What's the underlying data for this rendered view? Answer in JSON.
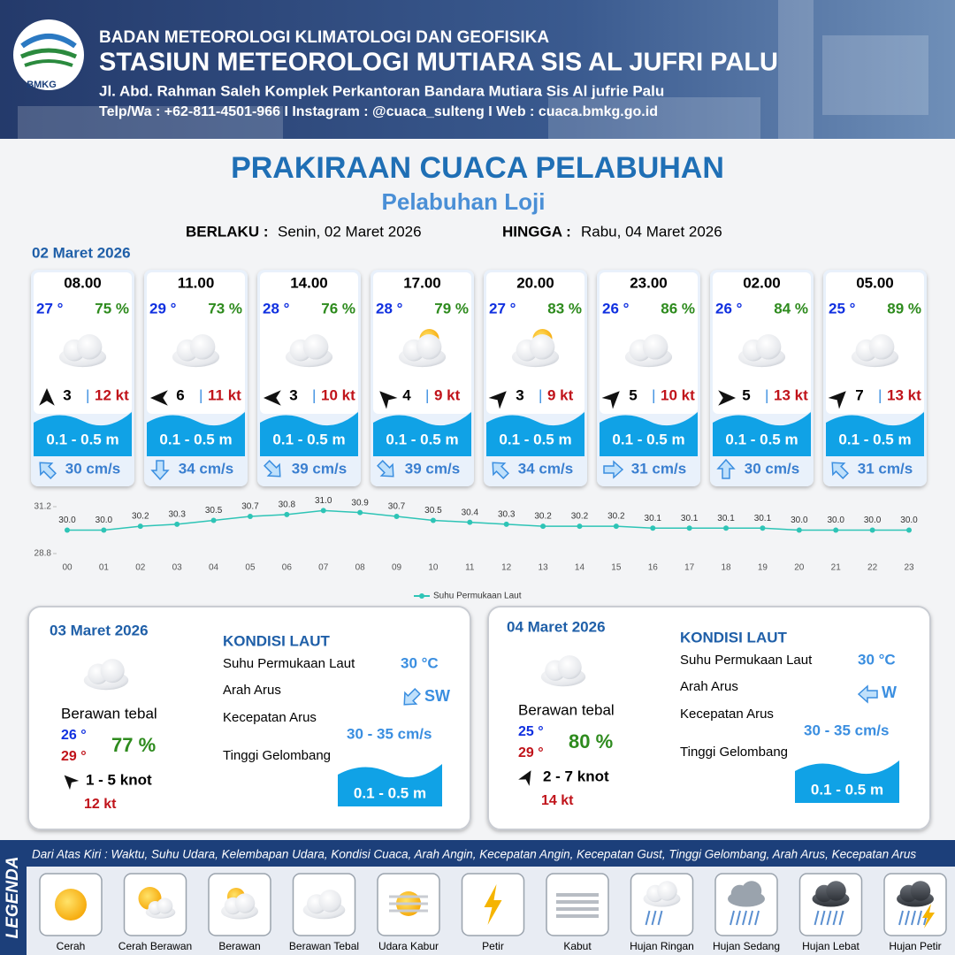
{
  "header": {
    "org": "BADAN METEOROLOGI KLIMATOLOGI DAN GEOFISIKA",
    "station": "STASIUN METEOROLOGI MUTIARA SIS AL JUFRI PALU",
    "address": "Jl. Abd. Rahman Saleh Komplek Perkantoran Bandara Mutiara Sis Al jufrie Palu",
    "contact": "Telp/Wa : +62-811-4501-966  I  Instagram : @cuaca_sulteng  I  Web : cuaca.bmkg.go.id",
    "logo": "BMKG"
  },
  "title": "PRAKIRAAN CUACA PELABUHAN",
  "subtitle": "Pelabuhan Loji",
  "validity": {
    "from_label": "BERLAKU :",
    "from": "Senin, 02 Maret 2026",
    "to_label": "HINGGA :",
    "to": "Rabu, 04 Maret 2026"
  },
  "day1": {
    "date": "02 Maret 2026",
    "cards": [
      {
        "time": "08.00",
        "temp": "27 °",
        "humidity": "75 %",
        "wind": "3",
        "gust": "12 kt",
        "wave": "0.1 - 0.5 m",
        "current": "30 cm/s"
      },
      {
        "time": "11.00",
        "temp": "29 °",
        "humidity": "73 %",
        "wind": "6",
        "gust": "11 kt",
        "wave": "0.1 - 0.5 m",
        "current": "34 cm/s"
      },
      {
        "time": "14.00",
        "temp": "28 °",
        "humidity": "76 %",
        "wind": "3",
        "gust": "10 kt",
        "wave": "0.1 - 0.5 m",
        "current": "39 cm/s"
      },
      {
        "time": "17.00",
        "temp": "28 °",
        "humidity": "79 %",
        "wind": "4",
        "gust": "9 kt",
        "wave": "0.1 - 0.5 m",
        "current": "39 cm/s"
      },
      {
        "time": "20.00",
        "temp": "27 °",
        "humidity": "83 %",
        "wind": "3",
        "gust": "9 kt",
        "wave": "0.1 - 0.5 m",
        "current": "34 cm/s"
      },
      {
        "time": "23.00",
        "temp": "26 °",
        "humidity": "86 %",
        "wind": "5",
        "gust": "10 kt",
        "wave": "0.1 - 0.5 m",
        "current": "31 cm/s"
      },
      {
        "time": "02.00",
        "temp": "26 °",
        "humidity": "84 %",
        "wind": "5",
        "gust": "13 kt",
        "wave": "0.1 - 0.5 m",
        "current": "30 cm/s"
      },
      {
        "time": "05.00",
        "temp": "25 °",
        "humidity": "89 %",
        "wind": "7",
        "gust": "13 kt",
        "wave": "0.1 - 0.5 m",
        "current": "31 cm/s"
      }
    ]
  },
  "chart_data": {
    "type": "line",
    "x": [
      "00",
      "01",
      "02",
      "03",
      "04",
      "05",
      "06",
      "07",
      "08",
      "09",
      "10",
      "11",
      "12",
      "13",
      "14",
      "15",
      "16",
      "17",
      "18",
      "19",
      "20",
      "21",
      "22",
      "23"
    ],
    "series": [
      {
        "name": "Suhu Permukaan Laut",
        "color": "#2ec4b6",
        "values": [
          30.0,
          30.0,
          30.2,
          30.3,
          30.5,
          30.7,
          30.8,
          31.0,
          30.9,
          30.7,
          30.5,
          30.4,
          30.3,
          30.2,
          30.2,
          30.2,
          30.1,
          30.1,
          30.1,
          30.1,
          30.0,
          30.0,
          30.0,
          30.0
        ],
        "value_labels": [
          "30.0",
          "30.0",
          "30.2",
          "30.3",
          "30.5",
          "30.7",
          "30.8",
          "31.0",
          "30.9",
          "30.7",
          "30.5",
          "30.4",
          "30.3",
          "30.2",
          "30.2",
          "30.2",
          "30.1",
          "30.1",
          "30.1",
          "30.1",
          "30.0",
          "30.0",
          "30.0",
          "30.0"
        ]
      }
    ],
    "ylim": [
      28.8,
      31.2
    ],
    "yticks": [
      28.8,
      31.2
    ]
  },
  "days": [
    {
      "date": "03 Maret 2026",
      "section": "KONDISI LAUT",
      "condition": "Berawan tebal",
      "tmin": "26 °",
      "tmax": "29 °",
      "humidity": "77 %",
      "wind": "1 - 5 knot",
      "gust": "12 kt",
      "sst_label": "Suhu Permukaan Laut",
      "sst": "30 °C",
      "dir_label": "Arah Arus",
      "dir": "SW",
      "speed_label": "Kecepatan Arus",
      "speed": "30 - 35 cm/s",
      "wave_label": "Tinggi Gelombang",
      "wave": "0.1 - 0.5 m"
    },
    {
      "date": "04 Maret 2026",
      "section": "KONDISI LAUT",
      "condition": "Berawan tebal",
      "tmin": "25 °",
      "tmax": "29 °",
      "humidity": "80 %",
      "wind": "2 - 7 knot",
      "gust": "14 kt",
      "sst_label": "Suhu Permukaan Laut",
      "sst": "30 °C",
      "dir_label": "Arah Arus",
      "dir": "W",
      "speed_label": "Kecepatan Arus",
      "speed": "30 - 35 cm/s",
      "wave_label": "Tinggi Gelombang",
      "wave": "0.1 - 0.5 m"
    }
  ],
  "legend": {
    "label": "LEGENDA",
    "description": "Dari Atas Kiri : Waktu, Suhu Udara, Kelembapan Udara, Kondisi Cuaca, Arah Angin, Kecepatan Angin, Kecepatan Gust, Tinggi Gelombang, Arah Arus, Kecepatan Arus",
    "items": [
      "Cerah",
      "Cerah Berawan",
      "Berawan",
      "Berawan Tebal",
      "Udara Kabur",
      "Petir",
      "Kabut",
      "Hujan Ringan",
      "Hujan Sedang",
      "Hujan Lebat",
      "Hujan Petir"
    ]
  }
}
